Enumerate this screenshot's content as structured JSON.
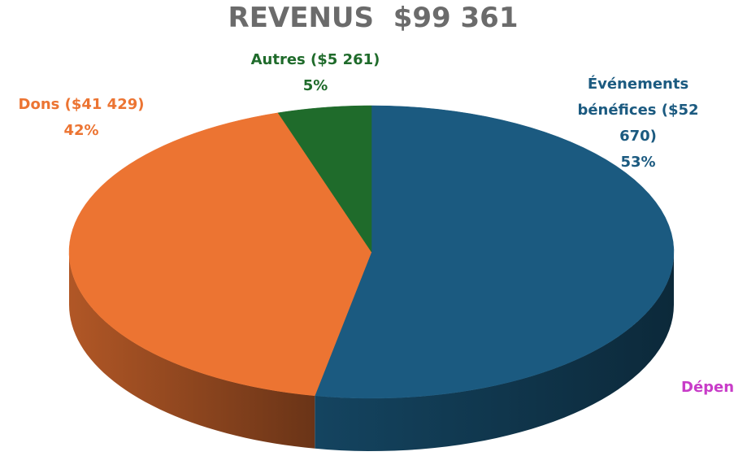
{
  "chart_data": {
    "type": "pie",
    "title": "REVENUS  $99 361",
    "categories": [
      "Événements bénéfices ($52 670)",
      "Dons ($41 429)",
      "Autres ($5 261)"
    ],
    "values": [
      53,
      42,
      5
    ],
    "value_labels": [
      "53%",
      "42%",
      "5%"
    ],
    "colors": [
      "#1b5a80",
      "#ec7432",
      "#1f6b2b"
    ],
    "annotation": "Dépen"
  }
}
